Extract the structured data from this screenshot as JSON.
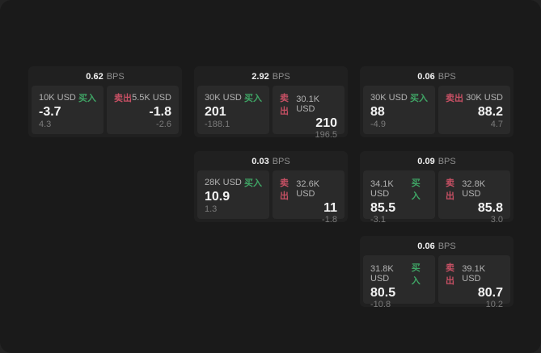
{
  "labels": {
    "bps_unit": "BPS",
    "buy": "买入",
    "sell": "卖出"
  },
  "colors": {
    "panel": "#1a1a1a",
    "card": "#202020",
    "cell": "#2a2a2a",
    "buy": "#3fa565",
    "sell": "#c75064",
    "price": "#f3f3f3",
    "size_label": "#b3b3b3",
    "sub_value": "#7b7b7b",
    "bps_value": "#f2f2f2",
    "bps_unit": "#8f8f8f"
  },
  "cards": [
    {
      "bps": "0.62",
      "col": 1,
      "row": 1,
      "buy": {
        "size": "10K USD",
        "price": "-3.7",
        "sub": "4.3"
      },
      "sell": {
        "size": "5.5K USD",
        "price": "-1.8",
        "sub": "-2.6"
      }
    },
    {
      "bps": "2.92",
      "col": 2,
      "row": 1,
      "buy": {
        "size": "30K USD",
        "price": "201",
        "sub": "-188.1"
      },
      "sell": {
        "size": "30.1K USD",
        "price": "210",
        "sub": "196.5"
      }
    },
    {
      "bps": "0.06",
      "col": 3,
      "row": 1,
      "buy": {
        "size": "30K USD",
        "price": "88",
        "sub": "-4.9"
      },
      "sell": {
        "size": "30K USD",
        "price": "88.2",
        "sub": "4.7"
      }
    },
    {
      "bps": "0.03",
      "col": 2,
      "row": 2,
      "buy": {
        "size": "28K USD",
        "price": "10.9",
        "sub": "1.3"
      },
      "sell": {
        "size": "32.6K USD",
        "price": "11",
        "sub": "-1.8"
      }
    },
    {
      "bps": "0.09",
      "col": 3,
      "row": 2,
      "buy": {
        "size": "34.1K USD",
        "price": "85.5",
        "sub": "-3.1"
      },
      "sell": {
        "size": "32.8K USD",
        "price": "85.8",
        "sub": "3.0"
      }
    },
    {
      "bps": "0.06",
      "col": 3,
      "row": 3,
      "buy": {
        "size": "31.8K USD",
        "price": "80.5",
        "sub": "-10.8"
      },
      "sell": {
        "size": "39.1K USD",
        "price": "80.7",
        "sub": "10.2"
      }
    }
  ]
}
